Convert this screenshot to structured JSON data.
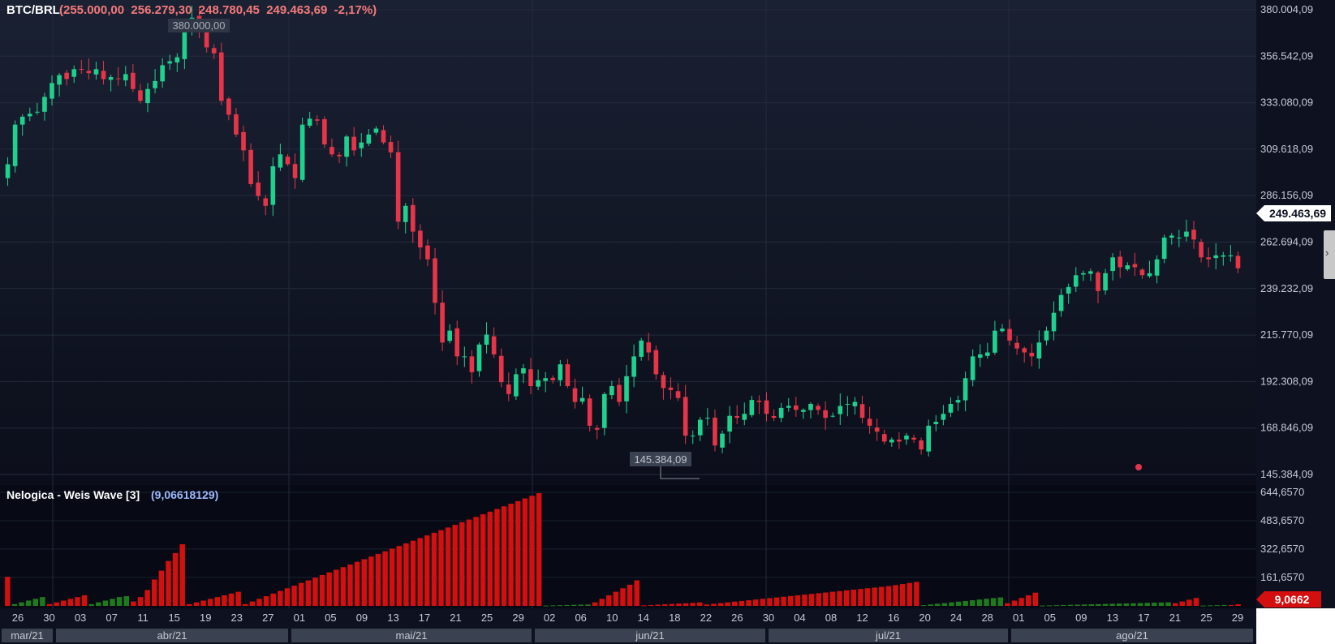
{
  "header": {
    "symbol": "BTC/BRL",
    "ohlc": "(255.000,00  256.279,30  248.780,45  249.463,69  -2,17%)"
  },
  "indicator": {
    "name": "Nelogica - Weis Wave [3]",
    "value_text": "(9,06618129)",
    "current_label": "9,0662"
  },
  "markers": {
    "high_label": "380.000,00",
    "low_label": "145.384,09",
    "last_price_label": "249.463,69"
  },
  "colors": {
    "up": "#1fd18e",
    "down": "#e63548",
    "wave_up": "#1f7a1f",
    "wave_down": "#d40f0f",
    "header_values": "#f47a7a",
    "indicator_value": "#9fb9ff",
    "background": "#0d1120"
  },
  "chart_data": [
    {
      "type": "candlestick",
      "title": "BTC/BRL",
      "y_axis_labels": [
        "380.004,09",
        "356.542,09",
        "333.080,09",
        "309.618,09",
        "286.156,09",
        "262.694,09",
        "239.232,09",
        "215.770,09",
        "192.308,09",
        "168.846,09",
        "145.384,09"
      ],
      "ylim": [
        145384.09,
        380004.09
      ],
      "x_tick_labels": [
        "26",
        "30",
        "03",
        "07",
        "11",
        "15",
        "19",
        "23",
        "27",
        "01",
        "05",
        "09",
        "13",
        "17",
        "21",
        "25",
        "29",
        "02",
        "06",
        "10",
        "14",
        "18",
        "22",
        "26",
        "30",
        "04",
        "08",
        "12",
        "16",
        "20",
        "24",
        "28",
        "01",
        "05",
        "09",
        "13",
        "17",
        "21",
        "25",
        "29"
      ],
      "month_labels": [
        "mar/21",
        "abr/21",
        "mai/21",
        "jun/21",
        "jul/21",
        "ago/21"
      ],
      "grid": true,
      "close_series": [
        302000,
        322000,
        326000,
        327500,
        328500,
        336000,
        343000,
        347000,
        345000,
        350000,
        350000,
        348000,
        350000,
        345000,
        346000,
        345000,
        347500,
        340000,
        334000,
        340000,
        344000,
        352000,
        354000,
        356000,
        372000,
        376000,
        370000,
        361000,
        358000,
        334000,
        327000,
        317000,
        309000,
        292000,
        286000,
        281000,
        301000,
        307000,
        302000,
        295000,
        322000,
        325000,
        324000,
        312000,
        307000,
        306000,
        316000,
        309000,
        313000,
        317000,
        320000,
        313000,
        308000,
        273000,
        281000,
        268000,
        260000,
        254000,
        232000,
        212000,
        218000,
        205000,
        205000,
        197000,
        211000,
        216000,
        206000,
        192000,
        186000,
        196000,
        199000,
        190000,
        193000,
        194000,
        193000,
        201000,
        190000,
        182000,
        184000,
        170000,
        168000,
        186000,
        190000,
        182000,
        195000,
        205000,
        213000,
        207000,
        196000,
        189000,
        188000,
        184000,
        165000,
        165000,
        173000,
        174000,
        160000,
        166000,
        175000,
        174000,
        176000,
        183000,
        182000,
        176000,
        174000,
        179000,
        180000,
        178000,
        178000,
        181000,
        178000,
        174000,
        175000,
        180000,
        181000,
        182000,
        174000,
        170000,
        167000,
        162000,
        163000,
        162000,
        165000,
        163000,
        158000,
        170000,
        172000,
        176000,
        181000,
        183000,
        194000,
        205000,
        206000,
        207000,
        218000,
        219000,
        213000,
        209000,
        207000,
        205000,
        212000,
        218000,
        227000,
        236000,
        240000,
        246000,
        247000,
        248000,
        238000,
        247000,
        255000,
        250000,
        251000,
        250000,
        246000,
        247000,
        254000,
        265000,
        266000,
        265000,
        268000,
        264000,
        255000,
        254000,
        256000,
        256000,
        256000,
        249463.69
      ]
    },
    {
      "type": "bar",
      "title": "Nelogica - Weis Wave [3]",
      "y_axis_labels": [
        "644,6570",
        "483,6570",
        "322,6570",
        "161,6570"
      ],
      "ylim": [
        0,
        644.657
      ],
      "last_value": 9.06618129,
      "waves": [
        {
          "dir": "down",
          "bars": [
            165
          ]
        },
        {
          "dir": "up",
          "bars": [
            10,
            20,
            30,
            40,
            50
          ]
        },
        {
          "dir": "down",
          "bars": [
            10,
            20,
            30,
            40,
            50,
            60
          ]
        },
        {
          "dir": "up",
          "bars": [
            10,
            20,
            30,
            40,
            50,
            55
          ]
        },
        {
          "dir": "down",
          "bars": [
            25,
            50,
            90,
            150,
            200,
            255,
            300,
            350
          ]
        },
        {
          "dir": "down",
          "bars": [
            10,
            20,
            30,
            40,
            50,
            60,
            70,
            80
          ]
        },
        {
          "dir": "down",
          "bars": [
            10,
            25,
            40,
            55,
            70,
            85,
            100,
            115,
            130,
            145,
            160,
            175,
            190,
            205,
            220,
            235,
            250,
            265,
            280,
            295,
            310,
            325,
            340,
            355,
            370,
            385,
            400,
            415,
            430,
            445,
            460,
            475,
            490,
            505,
            520,
            535,
            550,
            565,
            580,
            595,
            610,
            625,
            640
          ]
        },
        {
          "dir": "up",
          "bars": [
            2,
            3,
            4,
            5,
            6,
            7,
            8
          ]
        },
        {
          "dir": "down",
          "bars": [
            20,
            40,
            60,
            80,
            100,
            120,
            145
          ]
        },
        {
          "dir": "down",
          "bars": [
            3,
            5,
            7,
            9,
            11,
            13,
            15,
            17,
            20
          ]
        },
        {
          "dir": "down",
          "bars": [
            8,
            12,
            16,
            20,
            24,
            28,
            32,
            36,
            40,
            44,
            48,
            52,
            56,
            60,
            64,
            68,
            72,
            76,
            80,
            84,
            88,
            92,
            96,
            100,
            104,
            108,
            112,
            118,
            124,
            130,
            136
          ]
        },
        {
          "dir": "up",
          "bars": [
            4,
            8,
            12,
            16,
            20,
            24,
            28,
            32,
            36,
            40,
            44,
            48
          ]
        },
        {
          "dir": "down",
          "bars": [
            15,
            30,
            45,
            60,
            75
          ]
        },
        {
          "dir": "up",
          "bars": [
            2,
            3,
            4,
            5,
            6,
            7,
            8,
            9,
            10,
            11,
            12,
            13,
            14,
            15,
            16,
            17,
            18,
            19,
            20
          ]
        },
        {
          "dir": "down",
          "bars": [
            15,
            25,
            35,
            45
          ]
        },
        {
          "dir": "up",
          "bars": [
            2,
            3,
            4,
            5
          ]
        },
        {
          "dir": "down",
          "bars": [
            5,
            9.0662
          ]
        }
      ]
    }
  ]
}
